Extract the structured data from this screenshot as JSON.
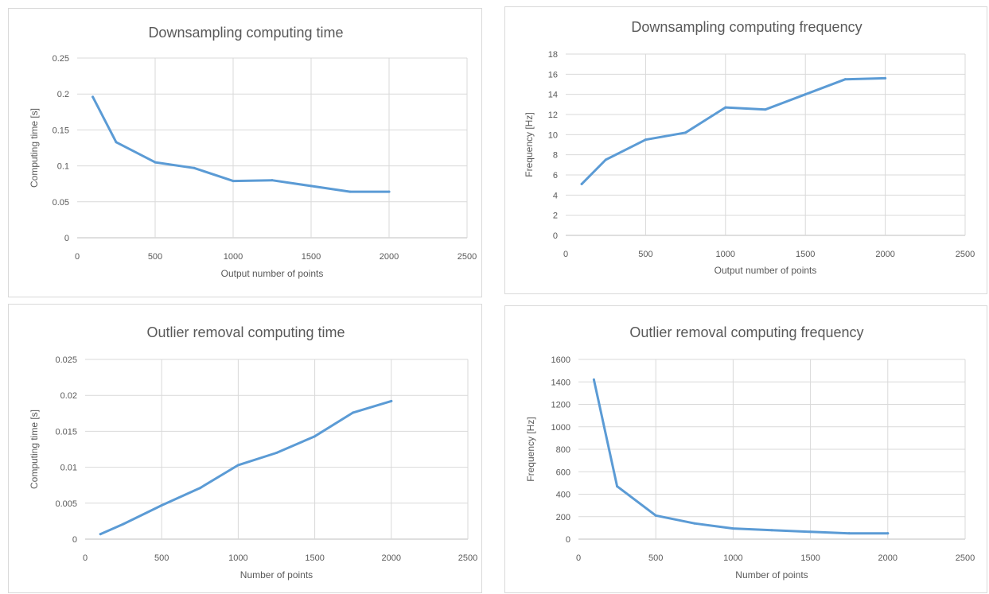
{
  "colors": {
    "series": "#5b9bd5",
    "text": "#595959",
    "grid": "#d9d9d9",
    "border": "#d9d9d9"
  },
  "chart_data": [
    {
      "type": "line",
      "title": "Downsampling computing time",
      "xlabel": "Output number of points",
      "ylabel": "Computing time [s]",
      "xlim": [
        0,
        2500
      ],
      "ylim": [
        0,
        0.25
      ],
      "xticks": [
        "0",
        "500",
        "1000",
        "1500",
        "2000",
        "2500"
      ],
      "yticks": [
        "0",
        "0.05",
        "0.1",
        "0.15",
        "0.2",
        "0.25"
      ],
      "grid": true,
      "legend": "none",
      "x": [
        100,
        250,
        500,
        750,
        1000,
        1250,
        1500,
        1750,
        2000
      ],
      "series": [
        {
          "values": [
            0.196,
            0.133,
            0.105,
            0.097,
            0.079,
            0.08,
            0.072,
            0.064,
            0.064
          ]
        }
      ]
    },
    {
      "type": "line",
      "title": "Downsampling computing frequency",
      "xlabel": "Output number of points",
      "ylabel": "Frequency [Hz]",
      "xlim": [
        0,
        2500
      ],
      "ylim": [
        0,
        18
      ],
      "xticks": [
        "0",
        "500",
        "1000",
        "1500",
        "2000",
        "2500"
      ],
      "yticks": [
        "0",
        "2",
        "4",
        "6",
        "8",
        "10",
        "12",
        "14",
        "16",
        "18"
      ],
      "grid": true,
      "legend": "none",
      "x": [
        100,
        250,
        500,
        750,
        1000,
        1250,
        1500,
        1750,
        2000
      ],
      "series": [
        {
          "values": [
            5.1,
            7.5,
            9.5,
            10.2,
            12.7,
            12.5,
            14.0,
            15.5,
            15.6
          ]
        }
      ]
    },
    {
      "type": "line",
      "title": "Outlier removal computing time",
      "xlabel": "Number of points",
      "ylabel": "Computing time [s]",
      "xlim": [
        0,
        2500
      ],
      "ylim": [
        0,
        0.025
      ],
      "xticks": [
        "0",
        "500",
        "1000",
        "1500",
        "2000",
        "2500"
      ],
      "yticks": [
        "0",
        "0.005",
        "0.01",
        "0.015",
        "0.02",
        "0.025"
      ],
      "grid": true,
      "legend": "none",
      "x": [
        100,
        250,
        500,
        750,
        1000,
        1250,
        1500,
        1750,
        2000
      ],
      "series": [
        {
          "values": [
            0.0007,
            0.0021,
            0.0047,
            0.0071,
            0.0103,
            0.012,
            0.0143,
            0.0176,
            0.0192
          ]
        }
      ]
    },
    {
      "type": "line",
      "title": "Outlier removal computing frequency",
      "xlabel": "Number of points",
      "ylabel": "Frequency [Hz]",
      "xlim": [
        0,
        2500
      ],
      "ylim": [
        0,
        1600
      ],
      "xticks": [
        "0",
        "500",
        "1000",
        "1500",
        "2000",
        "2500"
      ],
      "yticks": [
        "0",
        "200",
        "400",
        "600",
        "800",
        "1000",
        "1200",
        "1400",
        "1600"
      ],
      "grid": true,
      "legend": "none",
      "x": [
        100,
        250,
        500,
        750,
        1000,
        1250,
        1500,
        1750,
        2000
      ],
      "series": [
        {
          "values": [
            1420,
            470,
            210,
            140,
            95,
            80,
            65,
            52,
            52
          ]
        }
      ]
    }
  ]
}
